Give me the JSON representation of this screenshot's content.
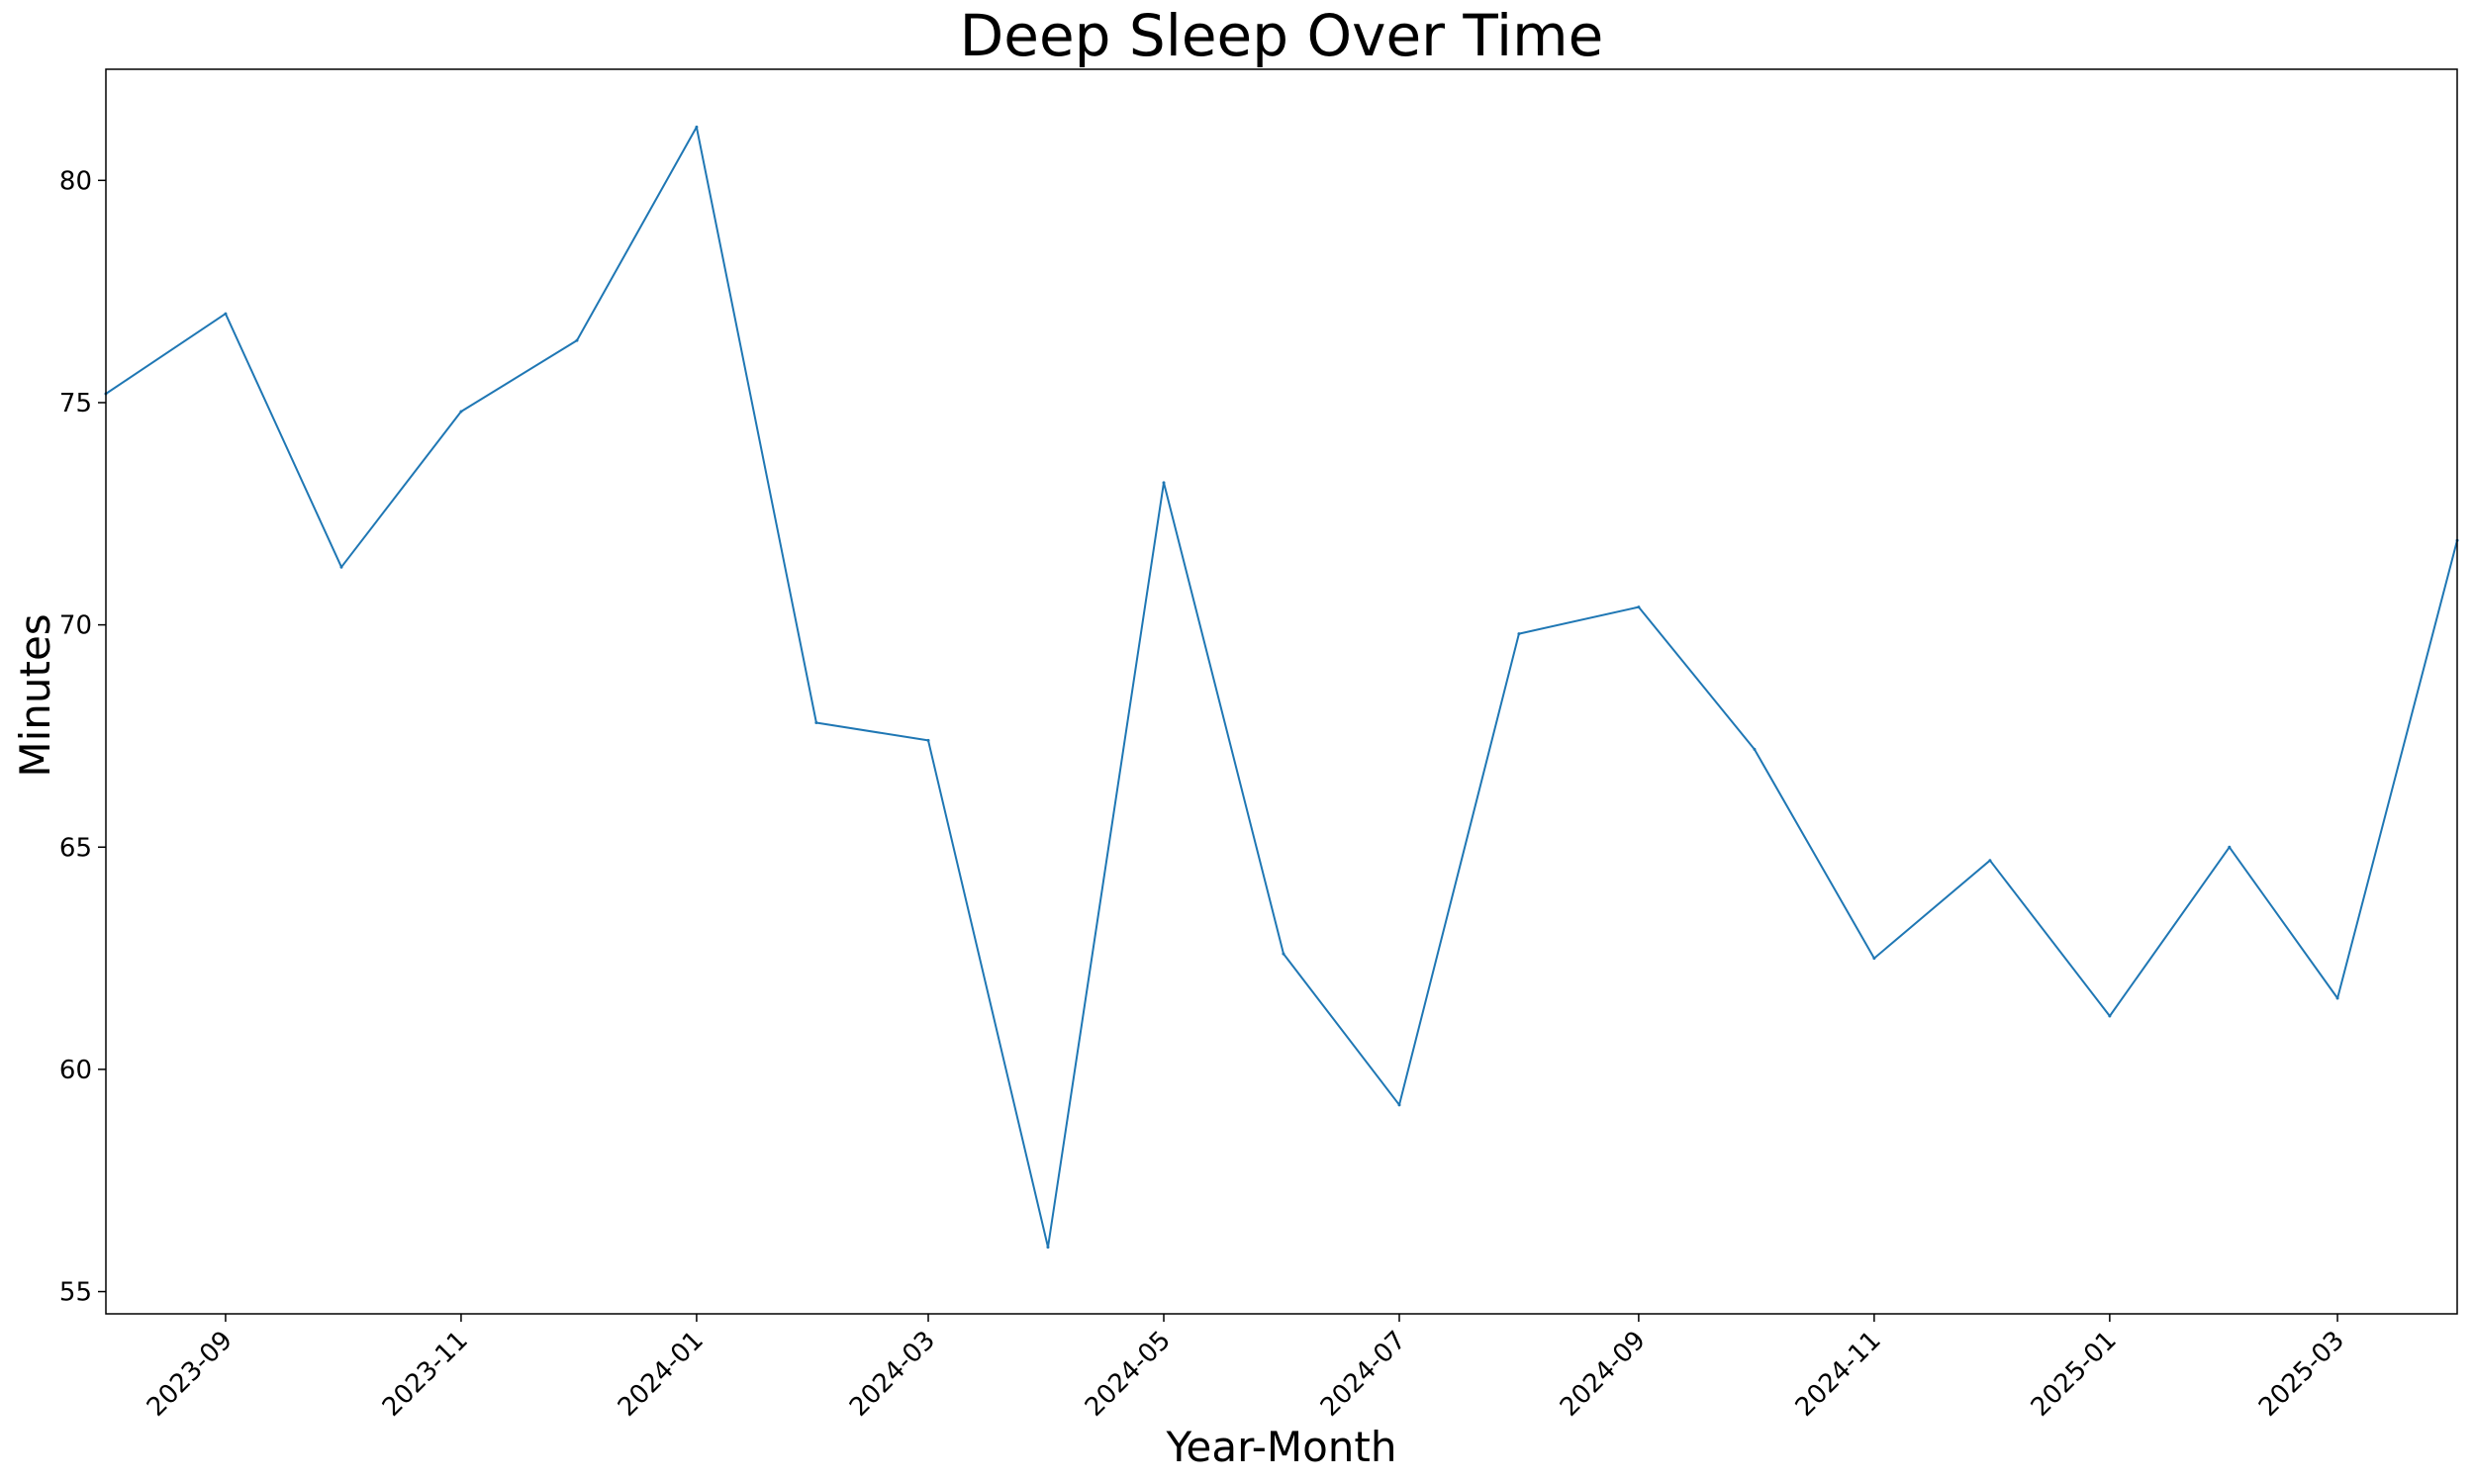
{
  "chart_data": {
    "type": "line",
    "title": "Deep Sleep Over Time",
    "xlabel": "Year-Month",
    "ylabel": "Minutes",
    "x_axis_kind": "date",
    "xlim": [
      "2023-08-01",
      "2025-04-01"
    ],
    "ylim": [
      54.5,
      82.5
    ],
    "y_ticks": [
      55,
      60,
      65,
      70,
      75,
      80
    ],
    "x_ticks": [
      "2023-09",
      "2023-11",
      "2024-01",
      "2024-03",
      "2024-05",
      "2024-07",
      "2024-09",
      "2024-11",
      "2025-01",
      "2025-03"
    ],
    "x_tick_dates": [
      "2023-09-01",
      "2023-11-01",
      "2024-01-01",
      "2024-03-01",
      "2024-05-01",
      "2024-07-01",
      "2024-09-01",
      "2024-11-01",
      "2025-01-01",
      "2025-03-01"
    ],
    "grid": false,
    "line_color": "#1f77b4",
    "series": [
      {
        "x": [
          "2023-08-01",
          "2023-09-01",
          "2023-10-01",
          "2023-11-01",
          "2023-12-01",
          "2024-01-01",
          "2024-02-01",
          "2024-03-01",
          "2024-04-01",
          "2024-05-01",
          "2024-06-01",
          "2024-07-01",
          "2024-08-01",
          "2024-09-01",
          "2024-10-01",
          "2024-11-01",
          "2024-12-01",
          "2025-01-01",
          "2025-02-01",
          "2025-03-01",
          "2025-04-01"
        ],
        "values": [
          75.2,
          77.0,
          71.3,
          74.8,
          76.4,
          81.2,
          67.8,
          67.4,
          56.0,
          73.2,
          62.6,
          59.2,
          69.8,
          70.4,
          67.2,
          62.5,
          64.7,
          61.2,
          65.0,
          61.6,
          71.9
        ]
      }
    ]
  }
}
